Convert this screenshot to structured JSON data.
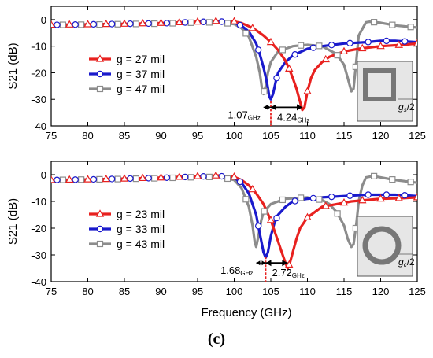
{
  "figure": {
    "panel_label": "(c)",
    "x_axis_label": "Frequency (GHz)"
  },
  "colors": {
    "red": "#e8211f",
    "blue": "#1a1acc",
    "gray": "#8c8c8c",
    "axis": "#000000"
  },
  "chart_data": [
    {
      "type": "line",
      "xlabel": "",
      "ylabel": "S21 (dB)",
      "xlim": [
        75,
        125
      ],
      "ylim": [
        -40,
        5
      ],
      "xticks": [
        "75",
        "80",
        "85",
        "90",
        "95",
        "100",
        "105",
        "110",
        "115",
        "120",
        "125"
      ],
      "yticks": [
        "0",
        "-10",
        "-20",
        "-30",
        "-40"
      ],
      "grid": false,
      "legend": "center-left",
      "series": [
        {
          "name": "g = 27 mil",
          "color": "#e8211f",
          "marker": "triangle",
          "x": [
            75,
            80,
            85,
            90,
            95,
            98,
            100,
            101,
            102,
            103,
            104,
            105,
            106,
            107,
            107.5,
            108,
            108.5,
            109,
            109.3,
            109.6,
            110,
            110.5,
            111,
            112,
            113,
            114,
            115,
            117,
            120,
            123,
            125
          ],
          "y": [
            -2,
            -1.8,
            -1.6,
            -1.3,
            -0.8,
            -0.5,
            -0.7,
            -1.3,
            -2.5,
            -4,
            -6,
            -8.5,
            -11.5,
            -15.5,
            -18.5,
            -22,
            -26,
            -31,
            -34,
            -33,
            -27,
            -22,
            -19,
            -16,
            -14,
            -13,
            -12,
            -11,
            -10,
            -9.5,
            -9
          ]
        },
        {
          "name": "g = 37 mil",
          "color": "#1a1acc",
          "marker": "circle",
          "x": [
            75,
            80,
            85,
            90,
            95,
            98,
            100,
            101,
            102,
            103,
            103.5,
            104,
            104.5,
            104.8,
            105,
            105.3,
            105.7,
            106,
            107,
            108,
            110,
            112,
            115,
            118,
            120,
            122,
            125
          ],
          "y": [
            -2,
            -1.8,
            -1.6,
            -1.4,
            -0.9,
            -0.7,
            -1.2,
            -2.3,
            -4.5,
            -9,
            -13,
            -18,
            -24,
            -29,
            -30,
            -28,
            -23,
            -20,
            -16,
            -13.5,
            -11,
            -10,
            -9,
            -8.5,
            -8,
            -8,
            -8.5
          ]
        },
        {
          "name": "g = 47 mil",
          "color": "#8c8c8c",
          "marker": "square",
          "x": [
            75,
            80,
            85,
            90,
            95,
            98,
            100,
            101,
            102,
            103,
            103.5,
            103.8,
            104,
            104.3,
            104.6,
            105,
            106,
            108,
            110,
            112,
            114,
            115,
            115.5,
            116,
            116.3,
            116.7,
            117,
            118,
            118.5,
            120,
            122,
            125
          ],
          "y": [
            -2,
            -1.9,
            -1.7,
            -1.5,
            -1.1,
            -1,
            -1.7,
            -3.2,
            -6.5,
            -14,
            -20,
            -26,
            -28,
            -25,
            -20,
            -16,
            -12,
            -10,
            -9.5,
            -10,
            -13,
            -17,
            -22,
            -27,
            -26,
            -15,
            -6,
            -1,
            -0.8,
            -1.2,
            -2.2,
            -3
          ]
        }
      ],
      "annotations": {
        "left_offset": "1.07",
        "right_offset": "4.24",
        "subscript": "GHz",
        "inset_label": "gs/2"
      }
    },
    {
      "type": "line",
      "xlabel": "Frequency (GHz)",
      "ylabel": "S21 (dB)",
      "xlim": [
        75,
        125
      ],
      "ylim": [
        -40,
        5
      ],
      "xticks": [
        "75",
        "80",
        "85",
        "90",
        "95",
        "100",
        "105",
        "110",
        "115",
        "120",
        "125"
      ],
      "yticks": [
        "0",
        "-10",
        "-20",
        "-30",
        "-40"
      ],
      "grid": false,
      "legend": "center-left",
      "series": [
        {
          "name": "g = 23 mil",
          "color": "#e8211f",
          "marker": "triangle",
          "x": [
            75,
            80,
            85,
            90,
            95,
            98,
            100,
            101,
            102,
            103,
            104,
            104.5,
            105,
            105.5,
            106,
            106.5,
            107,
            107.3,
            107.6,
            108,
            108.5,
            109,
            110,
            111,
            112,
            114,
            116,
            118,
            120,
            123,
            125
          ],
          "y": [
            -2,
            -1.8,
            -1.5,
            -1.1,
            -0.6,
            -0.3,
            -0.8,
            -2,
            -4,
            -7,
            -11,
            -14,
            -17,
            -21,
            -25,
            -29,
            -33,
            -35,
            -33,
            -29,
            -24,
            -20,
            -16,
            -14,
            -12,
            -11,
            -10,
            -9.5,
            -9,
            -8.8,
            -8.5
          ]
        },
        {
          "name": "g = 33 mil",
          "color": "#1a1acc",
          "marker": "circle",
          "x": [
            75,
            80,
            85,
            90,
            95,
            98,
            100,
            101,
            102,
            103,
            103.5,
            104,
            104.3,
            104.6,
            105,
            105.5,
            106,
            107,
            108,
            110,
            112,
            115,
            118,
            120,
            122,
            125
          ],
          "y": [
            -2,
            -1.8,
            -1.5,
            -1.2,
            -0.7,
            -0.5,
            -1.2,
            -3,
            -7,
            -15,
            -22,
            -29,
            -31,
            -29,
            -23,
            -18,
            -15,
            -12,
            -10,
            -9,
            -8.5,
            -8,
            -7.5,
            -7.5,
            -7.5,
            -8
          ]
        },
        {
          "name": "g = 43 mil",
          "color": "#8c8c8c",
          "marker": "square",
          "x": [
            75,
            80,
            85,
            90,
            95,
            98,
            100,
            101,
            102,
            102.5,
            102.8,
            103,
            103.3,
            103.7,
            104,
            105,
            107,
            110,
            112,
            113,
            114,
            115,
            115.5,
            116,
            116.3,
            116.7,
            117,
            117.5,
            118,
            119,
            120,
            122,
            125
          ],
          "y": [
            -2,
            -1.8,
            -1.6,
            -1.3,
            -0.9,
            -0.8,
            -2,
            -5,
            -12,
            -19,
            -25,
            -27,
            -23,
            -17,
            -14,
            -11,
            -9,
            -8.5,
            -9.5,
            -11,
            -14,
            -19,
            -24,
            -27,
            -26,
            -18,
            -10,
            -4,
            -1,
            -0.5,
            -1,
            -2,
            -3
          ]
        }
      ],
      "annotations": {
        "left_offset": "1.68",
        "right_offset": "2.72",
        "subscript": "GHz",
        "inset_label": "gc/2"
      }
    }
  ]
}
